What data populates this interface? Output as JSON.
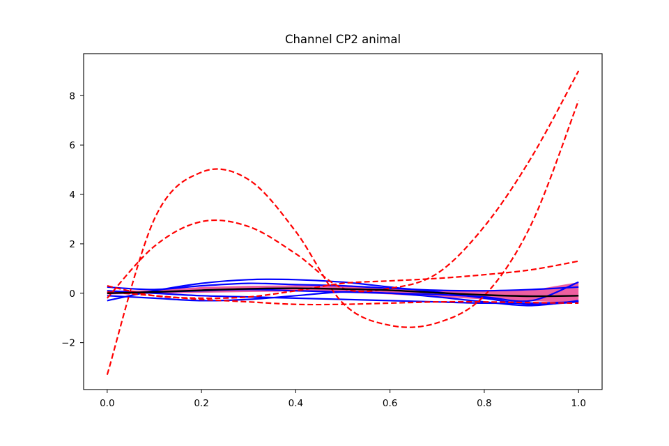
{
  "chart_data": {
    "type": "line",
    "title": "Channel CP2 animal",
    "xlabel": "",
    "ylabel": "",
    "xlim": [
      -0.05,
      1.05
    ],
    "ylim": [
      -3.9,
      9.7
    ],
    "x_ticks": [
      0.0,
      0.2,
      0.4,
      0.6,
      0.8,
      1.0
    ],
    "x_tick_labels": [
      "0.0",
      "0.2",
      "0.4",
      "0.6",
      "0.8",
      "1.0"
    ],
    "y_ticks": [
      -2,
      0,
      2,
      4,
      6,
      8
    ],
    "y_tick_labels": [
      "−2",
      "0",
      "2",
      "4",
      "6",
      "8"
    ],
    "grid": false,
    "legend": "none",
    "colors": {
      "dashed": "#ff0000",
      "solid": "#0000ff",
      "mean": "#000000",
      "band": "#ee5fa0"
    },
    "x": [
      0.0,
      0.1,
      0.2,
      0.3,
      0.4,
      0.5,
      0.6,
      0.7,
      0.8,
      0.9,
      1.0
    ],
    "band": {
      "lower": [
        -0.05,
        -0.02,
        0.02,
        0.05,
        0.07,
        0.04,
        -0.05,
        -0.15,
        -0.25,
        -0.32,
        -0.38
      ],
      "upper": [
        0.1,
        0.12,
        0.25,
        0.3,
        0.32,
        0.28,
        0.2,
        0.1,
        0.08,
        0.12,
        0.45
      ]
    },
    "series": [
      {
        "style": "dashed",
        "values": [
          -3.3,
          3.0,
          4.9,
          4.6,
          2.5,
          -0.4,
          -1.3,
          -1.2,
          -0.1,
          2.8,
          7.8
        ]
      },
      {
        "style": "dashed",
        "values": [
          -0.2,
          1.9,
          2.9,
          2.7,
          1.6,
          0.2,
          0.2,
          0.8,
          2.7,
          5.5,
          9.0
        ]
      },
      {
        "style": "dashed",
        "values": [
          0.3,
          -0.1,
          -0.2,
          -0.15,
          0.1,
          0.4,
          0.5,
          0.6,
          0.75,
          0.95,
          1.3
        ]
      },
      {
        "style": "dashed",
        "values": [
          0.05,
          -0.1,
          -0.25,
          -0.35,
          -0.45,
          -0.45,
          -0.4,
          -0.35,
          -0.35,
          -0.38,
          -0.4
        ]
      },
      {
        "style": "solid",
        "values": [
          0.25,
          0.15,
          0.3,
          0.4,
          0.35,
          0.3,
          0.2,
          0.12,
          0.1,
          0.15,
          0.25
        ]
      },
      {
        "style": "solid",
        "values": [
          -0.3,
          0.1,
          0.4,
          0.55,
          0.55,
          0.45,
          0.25,
          0.05,
          -0.2,
          -0.45,
          -0.35
        ]
      },
      {
        "style": "solid",
        "values": [
          -0.1,
          -0.2,
          -0.3,
          -0.25,
          -0.1,
          0.05,
          0.0,
          -0.15,
          -0.35,
          -0.5,
          -0.3
        ]
      },
      {
        "style": "solid",
        "values": [
          0.0,
          0.05,
          0.1,
          0.15,
          0.1,
          0.05,
          0.0,
          -0.05,
          -0.15,
          -0.3,
          0.45
        ]
      },
      {
        "style": "solid",
        "values": [
          0.1,
          0.0,
          -0.1,
          -0.15,
          -0.2,
          -0.25,
          -0.3,
          -0.35,
          -0.4,
          -0.4,
          -0.35
        ]
      },
      {
        "style": "mean",
        "values": [
          0.0,
          0.05,
          0.12,
          0.18,
          0.2,
          0.17,
          0.12,
          0.02,
          -0.07,
          -0.12,
          -0.1
        ]
      }
    ]
  }
}
